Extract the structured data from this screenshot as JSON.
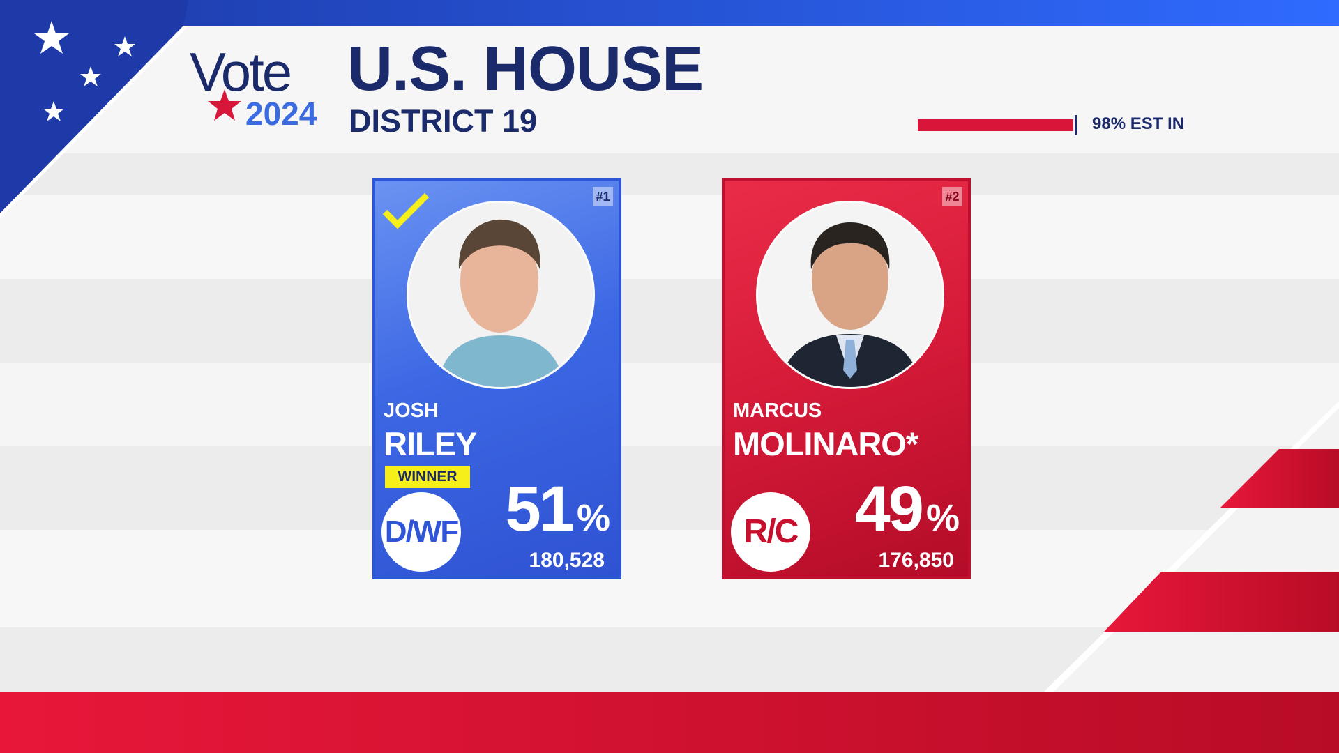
{
  "header": {
    "brand": "Vote",
    "year": "2024",
    "title": "U.S. HOUSE",
    "subtitle": "DISTRICT 19",
    "reporting": {
      "value": 98,
      "label": "98% EST IN"
    }
  },
  "candidates": [
    {
      "rank": "#1",
      "first_name": "JOSH",
      "last_name": "RILEY",
      "status": "WINNER",
      "party": "D/WF",
      "percent": 51,
      "percent_unit": "%",
      "votes": "180,528"
    },
    {
      "rank": "#2",
      "first_name": "MARCUS",
      "last_name": "MOLINARO*",
      "party": "R/C",
      "percent": 49,
      "percent_unit": "%",
      "votes": "176,850"
    }
  ]
}
